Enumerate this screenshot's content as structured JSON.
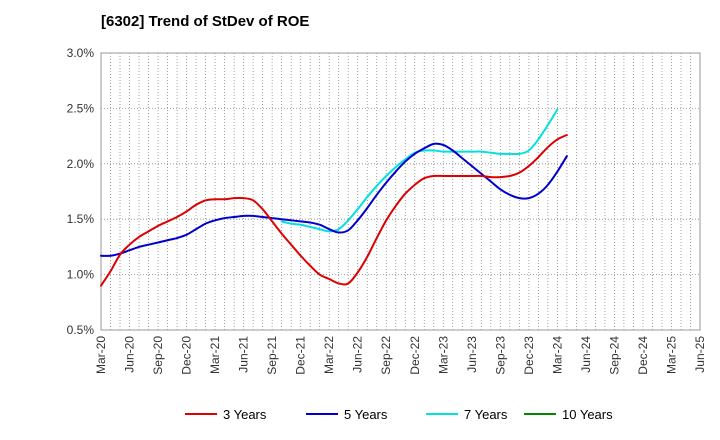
{
  "chart_data": {
    "type": "line",
    "title": "[6302]  Trend of StDev of ROE",
    "xlabel": "",
    "ylabel": "",
    "ylim": [
      0.5,
      3.0
    ],
    "x_tick_labels": [
      "Mar-20",
      "Jun-20",
      "Sep-20",
      "Dec-20",
      "Mar-21",
      "Jun-21",
      "Sep-21",
      "Dec-21",
      "Mar-22",
      "Jun-22",
      "Sep-22",
      "Dec-22",
      "Mar-23",
      "Jun-23",
      "Sep-23",
      "Dec-23",
      "Mar-24",
      "Jun-24",
      "Sep-24",
      "Dec-24",
      "Mar-25",
      "Jun-25"
    ],
    "y_ticks": [
      0.5,
      1.0,
      1.5,
      2.0,
      2.5,
      3.0
    ],
    "y_tick_labels": [
      "0.5%",
      "1.0%",
      "1.5%",
      "2.0%",
      "2.5%",
      "3.0%"
    ],
    "grid": "dotted",
    "legend_position": "bottom",
    "series": [
      {
        "name": "3 Years",
        "color": "#dd0000",
        "start_index": 0,
        "values": [
          0.9,
          1.03,
          1.18,
          1.27,
          1.34,
          1.39,
          1.44,
          1.48,
          1.52,
          1.57,
          1.63,
          1.67,
          1.68,
          1.68,
          1.69,
          1.69,
          1.67,
          1.59,
          1.48,
          1.37,
          1.27,
          1.17,
          1.08,
          1.0,
          0.96,
          0.92,
          0.92,
          1.02,
          1.16,
          1.33,
          1.49,
          1.62,
          1.73,
          1.81,
          1.87,
          1.89,
          1.89,
          1.89,
          1.89,
          1.89,
          1.89,
          1.88,
          1.88,
          1.89,
          1.92,
          1.98,
          2.06,
          2.15,
          2.22,
          2.26
        ]
      },
      {
        "name": "5 Years",
        "color": "#0000cc",
        "start_index": 0,
        "values": [
          1.17,
          1.17,
          1.19,
          1.22,
          1.25,
          1.27,
          1.29,
          1.31,
          1.33,
          1.36,
          1.41,
          1.46,
          1.49,
          1.51,
          1.52,
          1.53,
          1.53,
          1.52,
          1.51,
          1.5,
          1.49,
          1.48,
          1.47,
          1.45,
          1.41,
          1.38,
          1.4,
          1.49,
          1.6,
          1.72,
          1.83,
          1.93,
          2.02,
          2.09,
          2.14,
          2.18,
          2.17,
          2.12,
          2.05,
          1.98,
          1.91,
          1.84,
          1.77,
          1.72,
          1.69,
          1.69,
          1.73,
          1.81,
          1.93,
          2.07
        ]
      },
      {
        "name": "7 Years",
        "color": "#00e0e0",
        "start_index": 19,
        "values": [
          1.48,
          1.46,
          1.45,
          1.43,
          1.41,
          1.39,
          1.41,
          1.49,
          1.59,
          1.7,
          1.8,
          1.89,
          1.97,
          2.04,
          2.1,
          2.12,
          2.12,
          2.11,
          2.11,
          2.11,
          2.11,
          2.11,
          2.1,
          2.09,
          2.09,
          2.09,
          2.12,
          2.22,
          2.35,
          2.49
        ]
      },
      {
        "name": "10 Years",
        "color": "#008800",
        "start_index": 0,
        "values": []
      }
    ]
  }
}
